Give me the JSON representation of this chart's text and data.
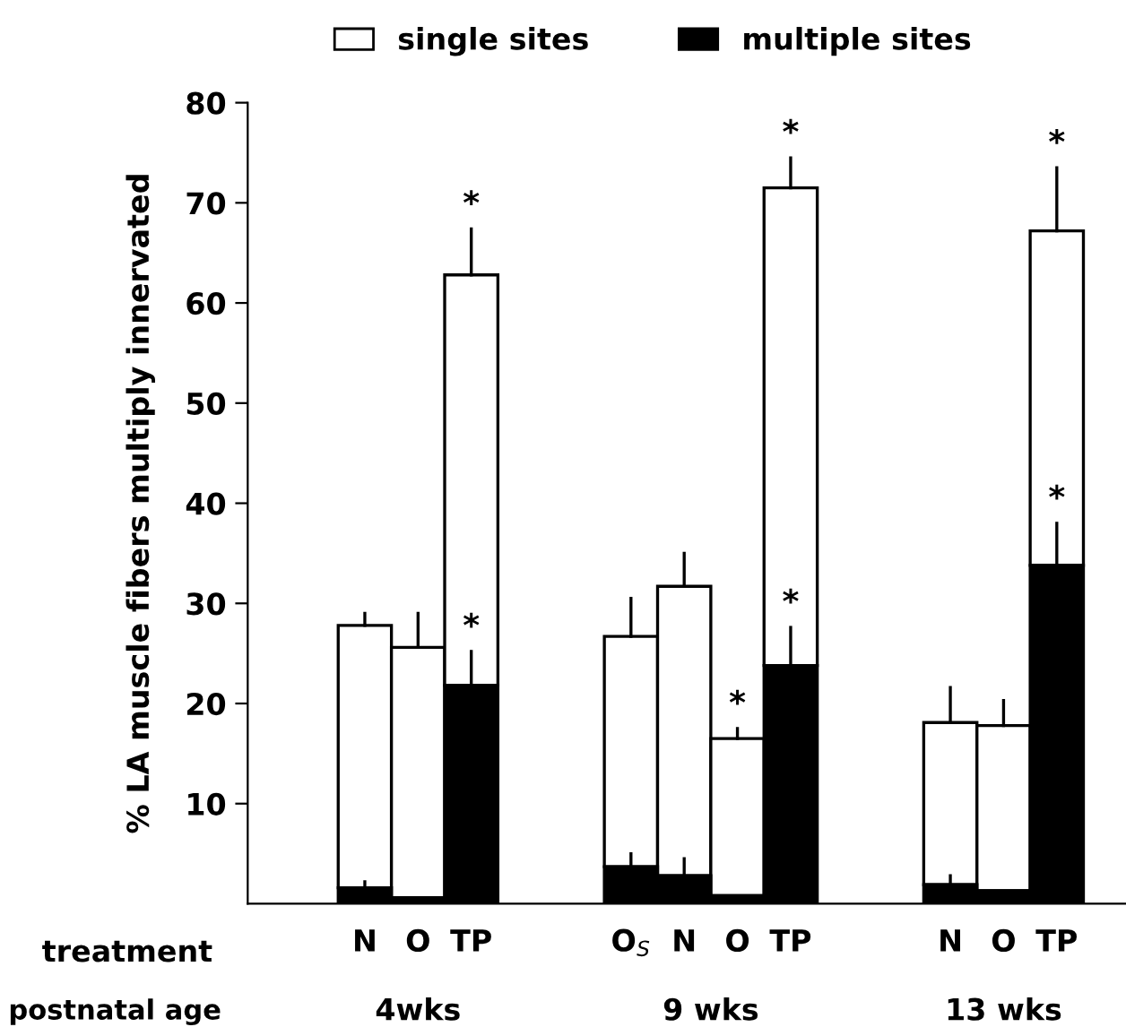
{
  "chart_data": {
    "type": "bar",
    "stacked": true,
    "ylabel": "% LA muscle fibers multiply innervated",
    "xlabel": "treatment",
    "categories": [
      "N",
      "O",
      "TP",
      null,
      null,
      "O$_{S}$",
      "N",
      "O",
      "TP",
      null,
      null,
      "N",
      "O",
      "TP"
    ],
    "series": [
      {
        "name": "multiple sites",
        "color": "#000000",
        "values": [
          1.6,
          0.6,
          21.8,
          null,
          null,
          3.7,
          2.8,
          0.8,
          23.8,
          null,
          null,
          1.9,
          1.3,
          33.8
        ],
        "errors": [
          [
            1.6,
            2.2
          ],
          null,
          [
            21.8,
            25.2
          ],
          null,
          null,
          [
            3.7,
            5.0
          ],
          [
            2.8,
            4.5
          ],
          null,
          [
            23.8,
            27.6
          ],
          null,
          null,
          [
            1.9,
            2.8
          ],
          null,
          [
            33.8,
            38.0
          ]
        ],
        "value_labels": [
          null,
          null,
          "*",
          null,
          null,
          null,
          null,
          null,
          "*",
          null,
          null,
          null,
          null,
          "*"
        ]
      },
      {
        "name": "single sites",
        "color": "#ffffff",
        "values": [
          26.2,
          25.0,
          41.0,
          null,
          null,
          23.0,
          28.9,
          15.7,
          47.7,
          null,
          null,
          16.2,
          16.5,
          33.4
        ],
        "errors": [
          [
            27.8,
            29.0
          ],
          [
            25.6,
            29.0
          ],
          [
            62.8,
            67.4
          ],
          null,
          null,
          [
            26.7,
            30.5
          ],
          [
            31.7,
            35.0
          ],
          [
            16.5,
            17.5
          ],
          [
            71.5,
            74.5
          ],
          null,
          null,
          [
            18.1,
            21.6
          ],
          [
            17.8,
            20.3
          ],
          [
            67.2,
            73.5
          ]
        ],
        "value_labels": [
          null,
          null,
          "*",
          null,
          null,
          null,
          null,
          "*",
          "*",
          null,
          null,
          null,
          null,
          "*"
        ]
      }
    ],
    "ylim": [
      0,
      80
    ],
    "yticks": [
      10,
      20,
      30,
      40,
      50,
      60,
      70,
      80
    ],
    "legend": "top",
    "grid": false,
    "annotations": [
      "postnatal age",
      "4wks",
      "9 wks",
      "13 wks"
    ]
  }
}
